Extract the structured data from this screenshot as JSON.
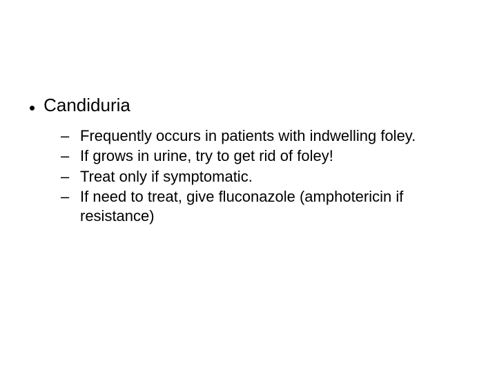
{
  "background_color": "#ffffff",
  "text_color": "#000000",
  "font_family": "Arial",
  "level1_fontsize": 26,
  "level2_fontsize": 22,
  "bullet_char": "•",
  "dash_char": "–",
  "main": {
    "title": "Candiduria",
    "items": [
      "Frequently occurs in patients with indwelling foley.",
      "If grows in urine, try to get rid of foley!",
      "Treat only if symptomatic.",
      "If need to treat, give fluconazole (amphotericin if resistance)"
    ]
  }
}
